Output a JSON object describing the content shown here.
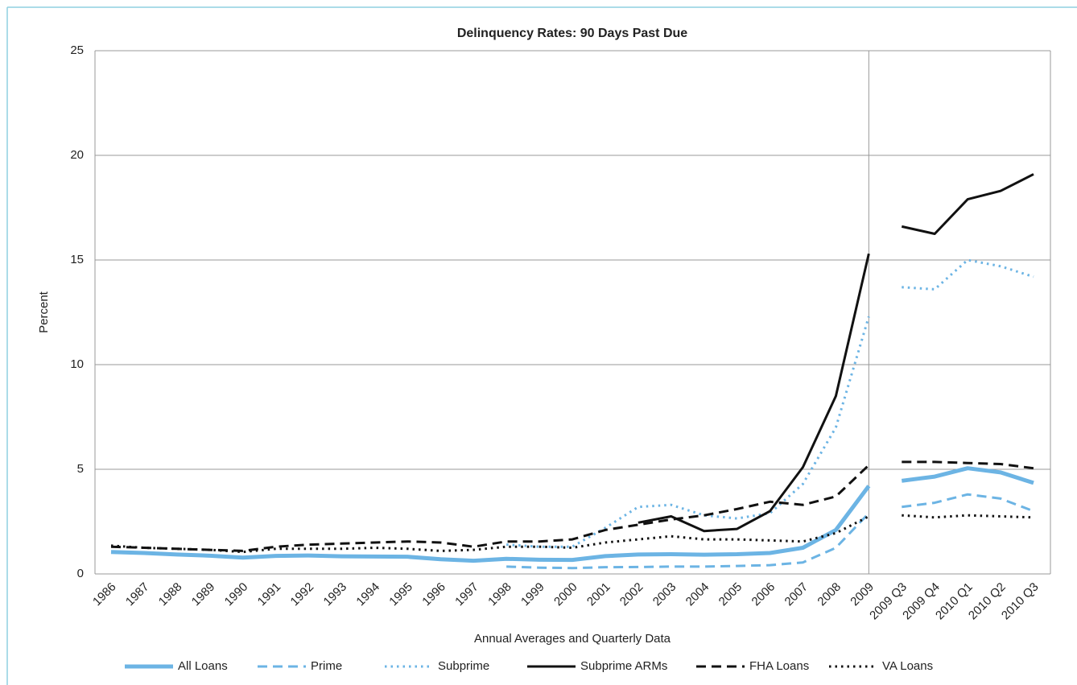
{
  "chart_data": {
    "type": "line",
    "title": "Delinquency Rates: 90 Days Past Due",
    "x_label": "Annual Averages and Quarterly Data",
    "y_label": "Percent",
    "categories": [
      "1986",
      "1987",
      "1988",
      "1989",
      "1990",
      "1991",
      "1992",
      "1993",
      "1994",
      "1995",
      "1996",
      "1997",
      "1998",
      "1999",
      "2000",
      "2001",
      "2002",
      "2003",
      "2004",
      "2005",
      "2006",
      "2007",
      "2008",
      "2009",
      "2009 Q3",
      "2009 Q4",
      "2010 Q1",
      "2010 Q2",
      "2010 Q3"
    ],
    "divider_after_index": 23,
    "ylim": [
      0,
      25
    ],
    "yticks": [
      0,
      5,
      10,
      15,
      20,
      25
    ],
    "grid": true,
    "legend": "bottom",
    "series": [
      {
        "name": "All Loans",
        "color": "#6cb4e4",
        "style": "solid-thick",
        "values": [
          1.05,
          1.0,
          0.93,
          0.87,
          0.78,
          0.86,
          0.88,
          0.84,
          0.83,
          0.82,
          0.7,
          0.63,
          0.72,
          0.68,
          0.67,
          0.85,
          0.93,
          0.94,
          0.92,
          0.94,
          1.0,
          1.25,
          2.1,
          4.2,
          4.45,
          4.65,
          5.05,
          4.85,
          4.35
        ]
      },
      {
        "name": "Prime",
        "color": "#6cb4e4",
        "style": "dashed",
        "values": [
          null,
          null,
          null,
          null,
          null,
          null,
          null,
          null,
          null,
          null,
          null,
          null,
          0.35,
          0.3,
          0.28,
          0.32,
          0.33,
          0.35,
          0.35,
          0.38,
          0.42,
          0.55,
          1.25,
          2.9,
          3.2,
          3.4,
          3.8,
          3.6,
          3.0
        ]
      },
      {
        "name": "Subprime",
        "color": "#6cb4e4",
        "style": "dotted",
        "values": [
          null,
          null,
          null,
          null,
          null,
          null,
          null,
          null,
          null,
          null,
          null,
          null,
          1.4,
          1.3,
          1.3,
          2.2,
          3.2,
          3.3,
          2.8,
          2.65,
          2.9,
          4.3,
          7.0,
          12.3,
          13.7,
          13.6,
          15.0,
          14.7,
          14.2
        ]
      },
      {
        "name": "Subprime ARMs",
        "color": "#111111",
        "style": "solid",
        "values": [
          null,
          null,
          null,
          null,
          null,
          null,
          null,
          null,
          null,
          null,
          null,
          null,
          null,
          null,
          null,
          null,
          2.45,
          2.75,
          2.05,
          2.15,
          3.0,
          5.1,
          8.5,
          15.3,
          16.6,
          16.25,
          17.9,
          18.3,
          19.1
        ]
      },
      {
        "name": "FHA Loans",
        "color": "#111111",
        "style": "dashed",
        "values": [
          1.3,
          1.25,
          1.2,
          1.15,
          1.1,
          1.3,
          1.4,
          1.45,
          1.5,
          1.55,
          1.5,
          1.3,
          1.55,
          1.55,
          1.65,
          2.1,
          2.35,
          2.6,
          2.8,
          3.1,
          3.45,
          3.3,
          3.7,
          5.2,
          5.35,
          5.35,
          5.3,
          5.25,
          5.05
        ]
      },
      {
        "name": "VA Loans",
        "color": "#111111",
        "style": "dotted",
        "values": [
          1.35,
          1.25,
          1.2,
          1.15,
          1.05,
          1.2,
          1.2,
          1.2,
          1.25,
          1.2,
          1.1,
          1.15,
          1.3,
          1.3,
          1.25,
          1.5,
          1.65,
          1.8,
          1.65,
          1.65,
          1.6,
          1.55,
          1.95,
          2.75,
          2.8,
          2.7,
          2.8,
          2.75,
          2.7
        ]
      }
    ]
  }
}
